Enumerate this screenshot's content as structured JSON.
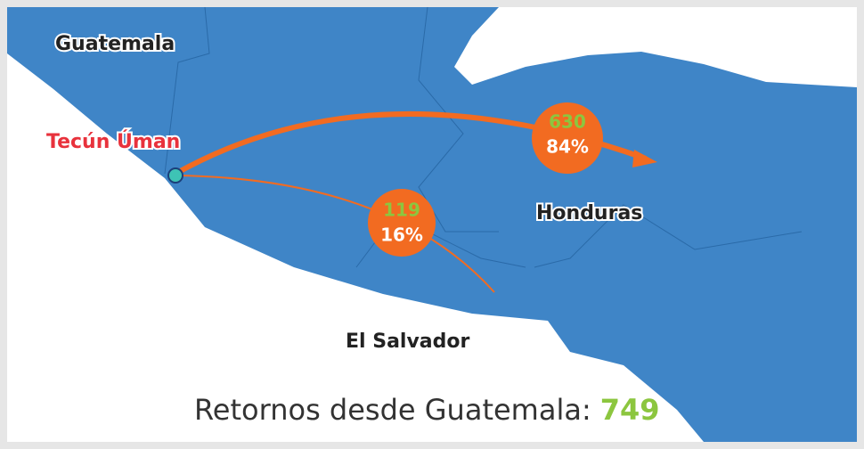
{
  "labels": {
    "guatemala": "Guatemala",
    "origin": "Tecún Úman",
    "honduras": "Honduras",
    "el_salvador": "El Salvador"
  },
  "flows": [
    {
      "count": 630,
      "share": "84%"
    },
    {
      "count": 119,
      "share": "16%"
    }
  ],
  "footer": {
    "text": "Retornos desde Guatemala:",
    "total": 749
  }
}
